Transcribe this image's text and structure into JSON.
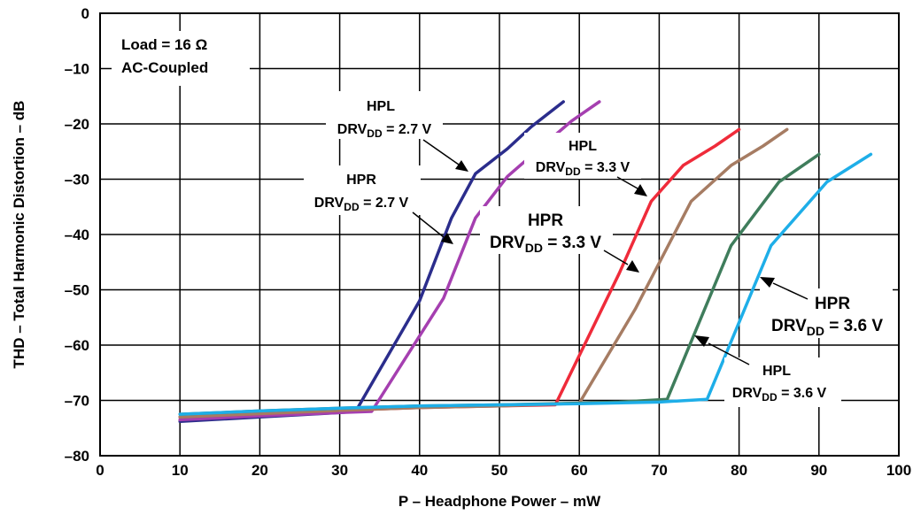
{
  "chart_data": {
    "type": "line",
    "xlabel": "P – Headphone Power – mW",
    "ylabel": "THD – Total Harmonic Distortion – dB",
    "xlim": [
      0,
      100
    ],
    "ylim": [
      -80,
      0
    ],
    "x_ticks": [
      "0",
      "10",
      "20",
      "30",
      "40",
      "50",
      "60",
      "70",
      "80",
      "90",
      "100"
    ],
    "y_ticks": [
      "0",
      "–10",
      "–20",
      "–30",
      "–40",
      "–50",
      "–60",
      "–70",
      "–80"
    ],
    "grid": true,
    "load_label": "Load = 16 Ω",
    "coupling_label": "AC-Coupled",
    "series": [
      {
        "color": "#2b2d8c",
        "x": [
          10,
          20,
          30,
          32,
          40,
          44,
          47,
          51,
          54,
          58
        ],
        "y": [
          -73.8,
          -73,
          -72.2,
          -72,
          -52,
          -37,
          -29,
          -24.5,
          -20.5,
          -16
        ]
      },
      {
        "color": "#a53fb0",
        "x": [
          10,
          20,
          30,
          34,
          43,
          47,
          51,
          55,
          59,
          62.5
        ],
        "y": [
          -73.5,
          -72.8,
          -72.2,
          -72,
          -51.5,
          -37,
          -29.5,
          -24.5,
          -19.5,
          -16
        ]
      },
      {
        "color": "#ef2b3a",
        "x": [
          10,
          20,
          30,
          40,
          50,
          57,
          65,
          69,
          73,
          77,
          80
        ],
        "y": [
          -73,
          -72.4,
          -71.8,
          -71.3,
          -71,
          -70.8,
          -47,
          -34,
          -27.5,
          -24,
          -21
        ]
      },
      {
        "color": "#a67c63",
        "x": [
          10,
          20,
          30,
          40,
          50,
          60,
          67,
          74,
          79,
          83,
          86
        ],
        "y": [
          -73,
          -72.4,
          -71.8,
          -71.3,
          -71,
          -70.5,
          -53.5,
          -34,
          -27.5,
          -24,
          -21
        ]
      },
      {
        "color": "#3f7d5c",
        "x": [
          10,
          20,
          30,
          40,
          50,
          60,
          65,
          71,
          79,
          85,
          90
        ],
        "y": [
          -72.5,
          -71.9,
          -71.4,
          -71,
          -70.8,
          -70.5,
          -70.3,
          -69.8,
          -42,
          -30.5,
          -25.5
        ]
      },
      {
        "color": "#1eaee8",
        "x": [
          10,
          20,
          30,
          40,
          50,
          60,
          70,
          76,
          84,
          91,
          96.5
        ],
        "y": [
          -72.5,
          -71.9,
          -71.4,
          -71,
          -70.8,
          -70.6,
          -70.3,
          -69.8,
          -42,
          -30.5,
          -25.5
        ]
      }
    ],
    "annotations": [
      {
        "line1": "HPL",
        "pre": "DRV",
        "sub": "DD",
        "post": " = 2.7 V"
      },
      {
        "line1": "HPR",
        "pre": "DRV",
        "sub": "DD",
        "post": " = 2.7 V"
      },
      {
        "line1": "HPL",
        "pre": "DRV",
        "sub": "DD",
        "post": " = 3.3 V"
      },
      {
        "line1": "HPR",
        "pre": "DRV",
        "sub": "DD",
        "post": " = 3.3 V"
      },
      {
        "line1": "HPR",
        "pre": "DRV",
        "sub": "DD",
        "post": " = 3.6 V"
      },
      {
        "line1": "HPL",
        "pre": "DRV",
        "sub": "DD",
        "post": " = 3.6 V"
      }
    ]
  }
}
